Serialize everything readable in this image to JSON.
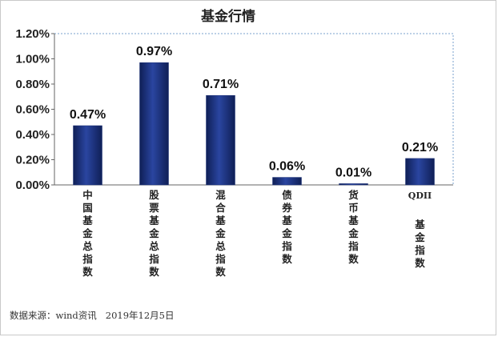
{
  "chart_data": {
    "type": "bar",
    "title": "基金行情",
    "categories": [
      "中国基金总指数",
      "股票基金总指数",
      "混合基金总指数",
      "债券基金指数",
      "货币基金指数",
      "QDII基金指数"
    ],
    "values": [
      0.47,
      0.97,
      0.71,
      0.06,
      0.01,
      0.21
    ],
    "data_labels": [
      "0.47%",
      "0.97%",
      "0.71%",
      "0.06%",
      "0.01%",
      "0.21%"
    ],
    "yticks": [
      0,
      0.2,
      0.4,
      0.6,
      0.8,
      1.0,
      1.2
    ],
    "ytick_labels": [
      "0.00%",
      "0.20%",
      "0.40%",
      "0.60%",
      "0.80%",
      "1.00%",
      "1.20%"
    ],
    "ylim": [
      0,
      1.2
    ],
    "xlabel": "",
    "ylabel": "",
    "grid": false,
    "bar_color": "#1d3278"
  },
  "source_note": "数据来源：wind资讯   2019年12月5日"
}
